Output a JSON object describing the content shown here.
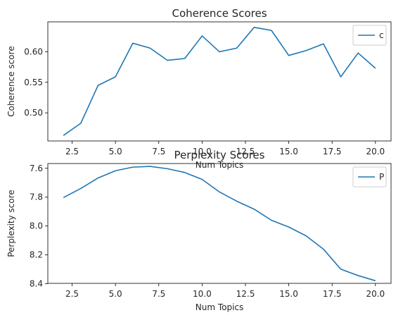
{
  "chart_data": [
    {
      "type": "line",
      "title": "Coherence Scores",
      "xlabel": "Num Topics",
      "ylabel": "Coherence score",
      "x": [
        2,
        3,
        4,
        5,
        6,
        7,
        8,
        9,
        10,
        11,
        12,
        13,
        14,
        15,
        16,
        17,
        18,
        19,
        20
      ],
      "series": [
        {
          "name": "c",
          "color": "#1f77b4",
          "values": [
            0.463,
            0.483,
            0.545,
            0.559,
            0.614,
            0.606,
            0.586,
            0.589,
            0.626,
            0.6,
            0.606,
            0.64,
            0.635,
            0.594,
            0.602,
            0.613,
            0.559,
            0.598,
            0.573
          ]
        }
      ],
      "xlim": [
        1.1,
        20.9
      ],
      "ylim": [
        0.454,
        0.649
      ],
      "xticks": [
        2.5,
        5.0,
        7.5,
        10.0,
        12.5,
        15.0,
        17.5,
        20.0
      ],
      "xtick_labels": [
        "2.5",
        "5.0",
        "7.5",
        "10.0",
        "12.5",
        "15.0",
        "17.5",
        "20.0"
      ],
      "yticks": [
        0.5,
        0.55,
        0.6
      ],
      "ytick_labels": [
        "0.50",
        "0.55",
        "0.60"
      ],
      "y_inverted": false,
      "grid": false,
      "legend": "top-right",
      "legend_label": "c"
    },
    {
      "type": "line",
      "title": "Perplexity Scores",
      "xlabel": "Num Topics",
      "ylabel": "Perplexity score",
      "x": [
        2,
        3,
        4,
        5,
        6,
        7,
        8,
        9,
        10,
        11,
        12,
        13,
        14,
        15,
        16,
        17,
        18,
        19,
        20
      ],
      "series": [
        {
          "name": "P",
          "color": "#1f77b4",
          "values": [
            7.803,
            7.74,
            7.667,
            7.617,
            7.592,
            7.587,
            7.603,
            7.629,
            7.677,
            7.764,
            7.828,
            7.883,
            7.96,
            8.007,
            8.068,
            8.16,
            8.299,
            8.343,
            8.379
          ]
        }
      ],
      "xlim": [
        1.1,
        20.9
      ],
      "ylim": [
        7.567,
        8.397
      ],
      "xticks": [
        2.5,
        5.0,
        7.5,
        10.0,
        12.5,
        15.0,
        17.5,
        20.0
      ],
      "xtick_labels": [
        "2.5",
        "5.0",
        "7.5",
        "10.0",
        "12.5",
        "15.0",
        "17.5",
        "20.0"
      ],
      "yticks": [
        7.6,
        7.8,
        8.0,
        8.2,
        8.4
      ],
      "ytick_labels": [
        "7.6",
        "7.8",
        "8.0",
        "8.2",
        "8.4"
      ],
      "y_inverted": true,
      "grid": false,
      "legend": "top-right",
      "legend_label": "P"
    }
  ]
}
